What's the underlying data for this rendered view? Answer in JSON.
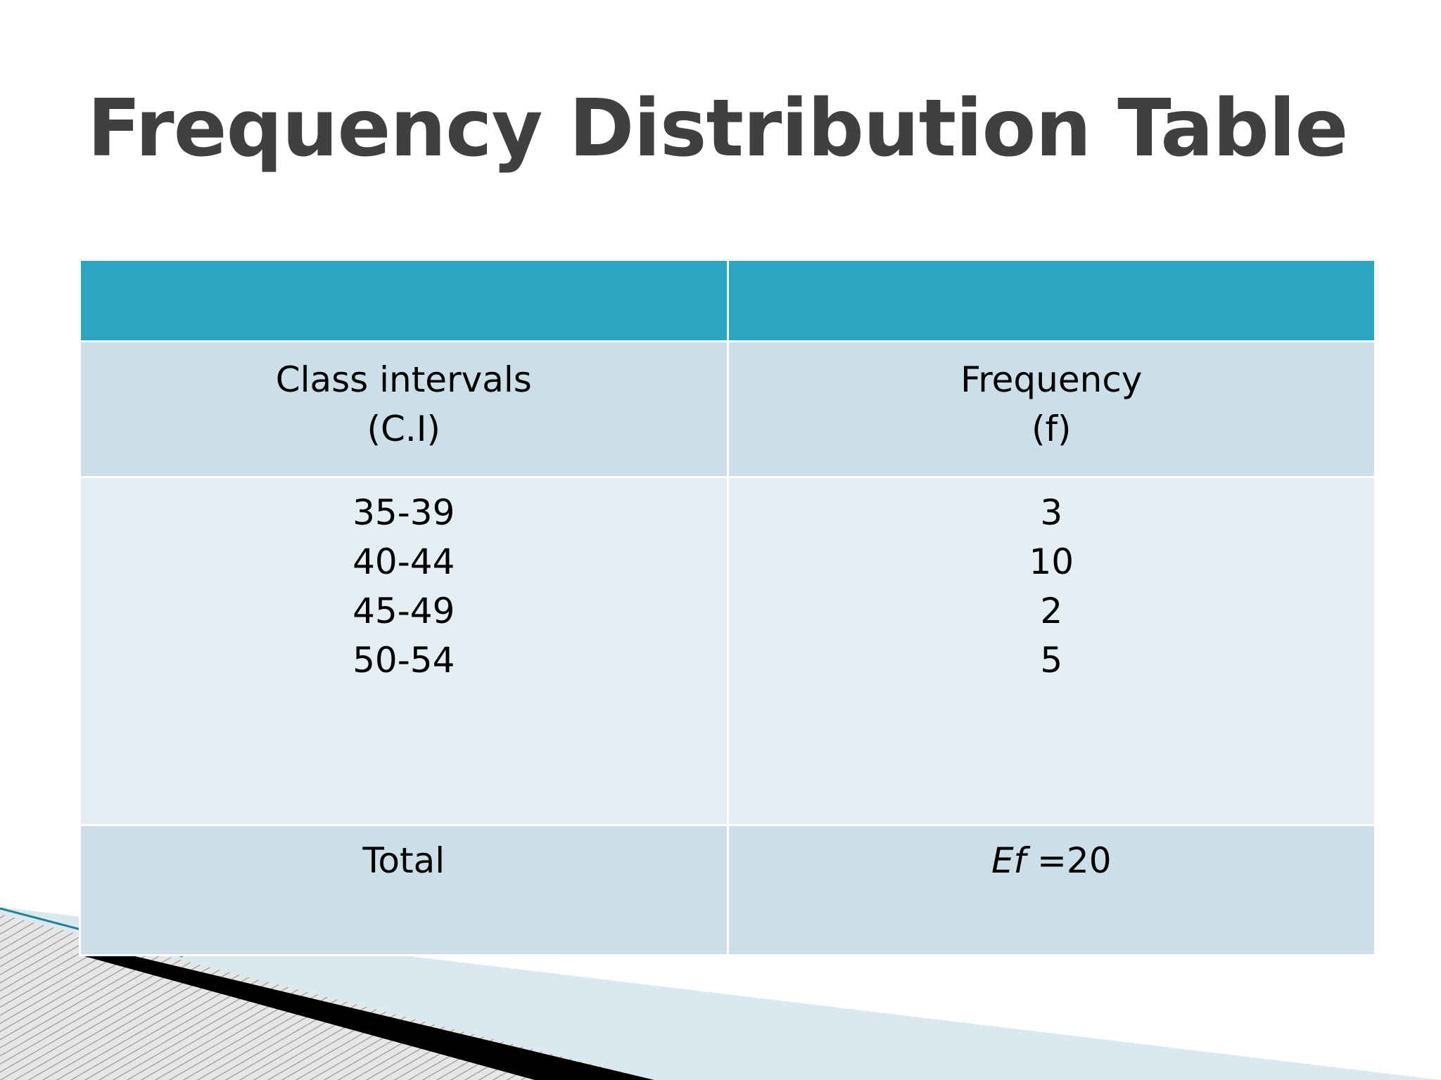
{
  "slide": {
    "title": "Frequency Distribution Table"
  },
  "table": {
    "header": {
      "class_label": "Class intervals",
      "class_abbr": "(C.I)",
      "freq_label": "Frequency",
      "freq_abbr": "(f)"
    },
    "rows": [
      {
        "class_interval": "35-39",
        "frequency": "3"
      },
      {
        "class_interval": "40-44",
        "frequency": "10"
      },
      {
        "class_interval": "45-49",
        "frequency": "2"
      },
      {
        "class_interval": "50-54",
        "frequency": "5"
      }
    ],
    "total": {
      "label": "Total",
      "sum_symbol": "Ef",
      "sum_value": " =20"
    }
  },
  "colors": {
    "title": "#404040",
    "header_band": "#2ca5c1",
    "row_dark": "#ccdee7",
    "row_light": "#e5eef3"
  }
}
